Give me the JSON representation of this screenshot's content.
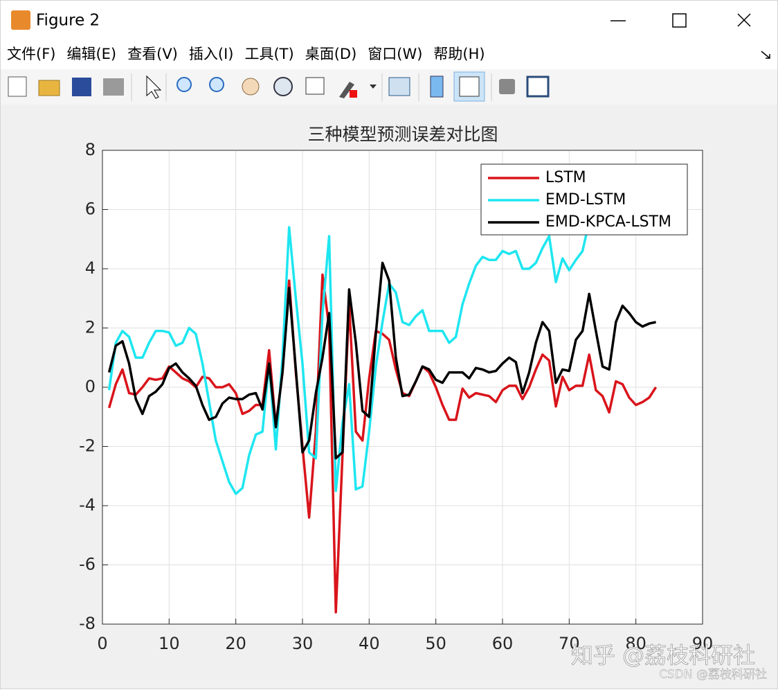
{
  "window": {
    "title": "Figure 2",
    "menu": [
      "文件(F)",
      "编辑(E)",
      "查看(V)",
      "插入(I)",
      "工具(T)",
      "桌面(D)",
      "窗口(W)",
      "帮助(H)"
    ],
    "watermarks": [
      "知乎 @荔枝科研社",
      "CSDN @荔枝科研社"
    ]
  },
  "chart_data": {
    "type": "line",
    "title": "三种模型预测误差对比图",
    "x": [
      1,
      2,
      3,
      4,
      5,
      6,
      7,
      8,
      9,
      10,
      11,
      12,
      13,
      14,
      15,
      16,
      17,
      18,
      19,
      20,
      21,
      22,
      23,
      24,
      25,
      26,
      27,
      28,
      29,
      30,
      31,
      32,
      33,
      34,
      35,
      36,
      37,
      38,
      39,
      40,
      41,
      42,
      43,
      44,
      45,
      46,
      47,
      48,
      49,
      50,
      51,
      52,
      53,
      54,
      55,
      56,
      57,
      58,
      59,
      60,
      61,
      62,
      63,
      64,
      65,
      66,
      67,
      68,
      69,
      70,
      71,
      72,
      73,
      74,
      75,
      76,
      77,
      78,
      79,
      80,
      81,
      82,
      83
    ],
    "series": [
      {
        "name": "LSTM",
        "color": "#d9141b",
        "values": [
          -0.7,
          0.1,
          0.6,
          -0.2,
          -0.25,
          0.0,
          0.3,
          0.25,
          0.3,
          0.7,
          0.5,
          0.3,
          0.2,
          0.0,
          0.35,
          0.3,
          0.0,
          0.0,
          0.1,
          -0.2,
          -0.9,
          -0.8,
          -0.6,
          -0.6,
          1.25,
          -1.3,
          0.5,
          3.6,
          0.5,
          -2.0,
          -4.4,
          -1.5,
          3.8,
          2.0,
          -7.6,
          -2.3,
          2.8,
          -1.5,
          -1.8,
          0.3,
          1.9,
          1.8,
          1.6,
          0.6,
          -0.2,
          -0.3,
          0.2,
          0.7,
          0.5,
          0.0,
          -0.6,
          -1.1,
          -1.1,
          -0.05,
          -0.35,
          -0.2,
          -0.25,
          -0.3,
          -0.5,
          -0.1,
          0.05,
          0.05,
          -0.4,
          0.0,
          0.6,
          1.1,
          0.9,
          -0.65,
          0.35,
          -0.1,
          0.05,
          0.05,
          1.1,
          -0.1,
          -0.3,
          -0.85,
          0.2,
          0.1,
          -0.35,
          -0.6,
          -0.5,
          -0.35,
          0.0
        ]
      },
      {
        "name": "EMD-LSTM",
        "color": "#1ee6f0",
        "values": [
          -0.1,
          1.5,
          1.9,
          1.7,
          1.0,
          1.0,
          1.5,
          1.9,
          1.9,
          1.85,
          1.4,
          1.5,
          2.0,
          1.8,
          0.8,
          -0.5,
          -1.8,
          -2.5,
          -3.2,
          -3.6,
          -3.4,
          -2.3,
          -1.6,
          -1.5,
          0.8,
          -2.1,
          1.0,
          5.4,
          3.0,
          0.8,
          -2.2,
          -2.4,
          2.5,
          5.1,
          -3.5,
          -1.2,
          0.1,
          -3.45,
          -3.35,
          -1.5,
          0.7,
          2.2,
          3.5,
          3.2,
          2.2,
          2.1,
          2.4,
          2.6,
          1.9,
          1.9,
          1.9,
          1.5,
          1.7,
          2.8,
          3.5,
          4.1,
          4.4,
          4.3,
          4.3,
          4.6,
          4.5,
          4.6,
          4.0,
          4.0,
          4.2,
          4.7,
          5.1,
          3.55,
          4.35,
          3.95,
          4.3,
          4.6,
          5.6,
          null,
          null,
          null,
          null,
          null,
          null,
          null,
          null,
          null,
          null
        ]
      },
      {
        "name": "EMD-KPCA-LSTM",
        "color": "#000000",
        "values": [
          0.5,
          1.4,
          1.55,
          0.8,
          -0.4,
          -0.9,
          -0.3,
          -0.15,
          0.1,
          0.65,
          0.8,
          0.5,
          0.3,
          0.05,
          -0.6,
          -1.1,
          -1.0,
          -0.55,
          -0.35,
          -0.4,
          -0.4,
          -0.25,
          -0.2,
          -0.75,
          0.8,
          -1.35,
          0.5,
          3.35,
          0.6,
          -2.2,
          -1.8,
          -0.2,
          1.0,
          2.5,
          -2.4,
          -2.2,
          3.3,
          1.5,
          -0.8,
          -1.0,
          1.8,
          4.2,
          3.6,
          1.0,
          -0.3,
          -0.25,
          0.2,
          0.7,
          0.6,
          0.25,
          0.15,
          0.5,
          0.5,
          0.5,
          0.3,
          0.65,
          0.6,
          0.5,
          0.55,
          0.8,
          1.0,
          0.85,
          -0.2,
          0.5,
          1.5,
          2.2,
          1.9,
          0.15,
          0.6,
          0.55,
          1.6,
          1.9,
          3.15,
          1.9,
          0.7,
          0.6,
          2.2,
          2.75,
          2.5,
          2.2,
          2.05,
          2.15,
          2.2
        ]
      }
    ],
    "xlim": [
      0,
      90
    ],
    "xticks": [
      0,
      10,
      20,
      30,
      40,
      50,
      60,
      70,
      80,
      90
    ],
    "ylim": [
      -8,
      8
    ],
    "yticks": [
      -8,
      -6,
      -4,
      -2,
      0,
      2,
      4,
      6,
      8
    ],
    "grid": true,
    "legend": "upper right"
  }
}
